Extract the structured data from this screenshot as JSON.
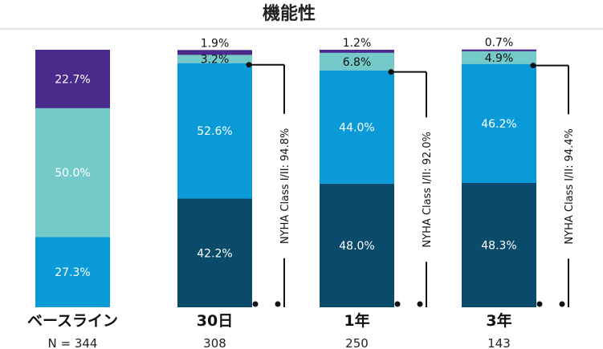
{
  "title": "機能性",
  "colors": {
    "class_iv": "#4a2a8a",
    "class_iii": "#74cac8",
    "class_ii": "#0a9ad8",
    "class_i": "#0a4a6a",
    "separator": "#c8c8c8",
    "bracket": "#111111"
  },
  "chart_data": {
    "type": "bar",
    "stacked": true,
    "categories": [
      "ベースライン",
      "30日",
      "1年",
      "3年"
    ],
    "n_values": [
      "N = 344",
      "308",
      "250",
      "143"
    ],
    "series": [
      {
        "key": "class_i",
        "values": [
          0,
          42.2,
          48.0,
          48.3
        ]
      },
      {
        "key": "class_ii",
        "values": [
          27.3,
          52.6,
          44.0,
          46.2
        ]
      },
      {
        "key": "class_iii",
        "values": [
          50.0,
          3.2,
          6.8,
          4.9
        ]
      },
      {
        "key": "class_iv",
        "values": [
          22.7,
          1.9,
          1.2,
          0.7
        ]
      }
    ],
    "labels": [
      {
        "class_ii": "27.3%",
        "class_iii": "50.0%",
        "class_iv": "22.7%"
      },
      {
        "class_i": "42.2%",
        "class_ii": "52.6%",
        "class_iii": "3.2%",
        "class_iv": "1.9%"
      },
      {
        "class_i": "48.0%",
        "class_ii": "44.0%",
        "class_iii": "6.8%",
        "class_iv": "1.2%"
      },
      {
        "class_i": "48.3%",
        "class_ii": "46.2%",
        "class_iii": "4.9%",
        "class_iv": "0.7%"
      }
    ],
    "brackets": [
      null,
      "NYHA Class I/II: 94.8%",
      "NYHA Class I/II: 92.0%",
      "NYHA Class I/II: 94.4%"
    ],
    "ylim": [
      0,
      100
    ],
    "legend": "none",
    "grid": false
  }
}
